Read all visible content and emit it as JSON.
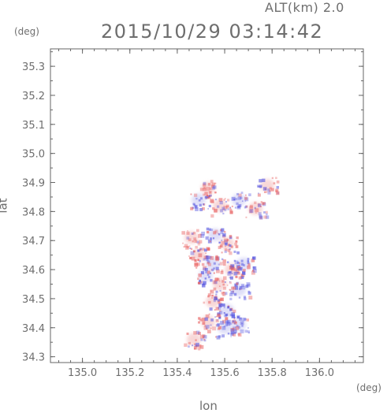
{
  "header": {
    "altitude_label": "ALT(km) 2.0",
    "timestamp": "2015/10/29 03:14:42"
  },
  "units": {
    "y_unit": "(deg)",
    "x_unit": "(deg)"
  },
  "colors": {
    "axis": "#666666",
    "positive": "#e86060",
    "negative": "#5a5ae0"
  },
  "chart_data": {
    "type": "heatmap",
    "title": "2015/10/29 03:14:42",
    "subtitle": "ALT(km) 2.0",
    "xlabel": "lon",
    "ylabel": "lat",
    "xunit": "(deg)",
    "yunit": "(deg)",
    "xlim": [
      134.865,
      136.185
    ],
    "ylim": [
      34.28,
      35.36
    ],
    "xticks": [
      "135.0",
      "135.2",
      "135.4",
      "135.6",
      "135.8",
      "136.0"
    ],
    "yticks": [
      "34.3",
      "34.4",
      "34.5",
      "34.6",
      "34.7",
      "34.8",
      "34.9",
      "35.0",
      "35.1",
      "35.2",
      "35.3"
    ],
    "grid": false,
    "color_scale": "diverging blue-white-red",
    "blobs": [
      {
        "lon": 135.53,
        "lat": 34.88,
        "value": 0.3
      },
      {
        "lon": 135.49,
        "lat": 34.84,
        "value": -0.5
      },
      {
        "lon": 135.58,
        "lat": 34.82,
        "value": 0.4
      },
      {
        "lon": 135.66,
        "lat": 34.84,
        "value": -0.3
      },
      {
        "lon": 135.73,
        "lat": 34.81,
        "value": 0.2
      },
      {
        "lon": 135.78,
        "lat": 34.89,
        "value": 0.6
      },
      {
        "lon": 135.56,
        "lat": 34.72,
        "value": -0.6
      },
      {
        "lon": 135.61,
        "lat": 34.69,
        "value": 0.5
      },
      {
        "lon": 135.49,
        "lat": 34.65,
        "value": 0.8
      },
      {
        "lon": 135.55,
        "lat": 34.62,
        "value": -0.4
      },
      {
        "lon": 135.63,
        "lat": 34.6,
        "value": 0.7
      },
      {
        "lon": 135.52,
        "lat": 34.58,
        "value": -0.7
      },
      {
        "lon": 135.58,
        "lat": 34.55,
        "value": 0.3
      },
      {
        "lon": 135.66,
        "lat": 34.53,
        "value": -0.5
      },
      {
        "lon": 135.55,
        "lat": 34.49,
        "value": 0.6
      },
      {
        "lon": 135.61,
        "lat": 34.46,
        "value": -0.8
      },
      {
        "lon": 135.53,
        "lat": 34.42,
        "value": 0.5
      },
      {
        "lon": 135.6,
        "lat": 34.4,
        "value": -0.4
      },
      {
        "lon": 135.47,
        "lat": 34.36,
        "value": 0.4
      },
      {
        "lon": 135.66,
        "lat": 34.41,
        "value": -0.3
      },
      {
        "lon": 135.68,
        "lat": 34.62,
        "value": -0.6
      },
      {
        "lon": 135.46,
        "lat": 34.71,
        "value": 0.2
      }
    ]
  }
}
